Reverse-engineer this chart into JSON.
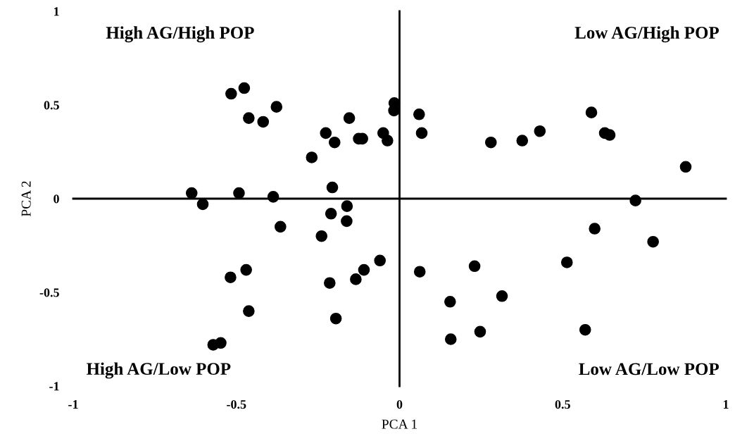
{
  "chart_data": {
    "type": "scatter",
    "xlabel": "PCA 1",
    "ylabel": "PCA 2",
    "xlim": [
      -1,
      1
    ],
    "ylim": [
      -1,
      1
    ],
    "xticks": [
      -1,
      -0.5,
      0,
      0.5,
      1
    ],
    "yticks": [
      -1,
      -0.5,
      0,
      0.5,
      1
    ],
    "marker": "circle",
    "annotations": [
      "High AG/High POP",
      "Low AG/High POP",
      "High AG/Low POP",
      "Low AG/Low POP"
    ],
    "series": [
      {
        "color": "#000000",
        "x": [
          -0.516,
          -0.476,
          -0.462,
          -0.418,
          -0.377,
          -0.269,
          -0.226,
          -0.199,
          -0.154,
          -0.125,
          -0.114,
          -0.05,
          -0.037,
          -0.016,
          -0.017,
          -0.637,
          -0.492,
          -0.387,
          -0.206,
          0.06,
          0.068,
          0.28,
          0.376,
          0.43,
          0.588,
          0.629,
          0.644,
          0.877,
          0.723,
          -0.603,
          -0.161,
          -0.21,
          -0.162,
          -0.365,
          -0.239,
          -0.06,
          -0.109,
          -0.134,
          -0.214,
          -0.47,
          -0.518,
          -0.462,
          -0.195,
          -0.571,
          -0.548,
          0.598,
          0.777,
          0.513,
          0.062,
          0.23,
          0.155,
          0.314,
          0.157,
          0.247,
          0.569
        ],
        "values": [
          0.56,
          0.59,
          0.43,
          0.41,
          0.49,
          0.22,
          0.35,
          0.3,
          0.43,
          0.32,
          0.32,
          0.35,
          0.31,
          0.51,
          0.47,
          0.03,
          0.03,
          0.01,
          0.06,
          0.45,
          0.35,
          0.3,
          0.31,
          0.36,
          0.46,
          0.35,
          0.34,
          0.17,
          -0.01,
          -0.03,
          -0.04,
          -0.08,
          -0.12,
          -0.15,
          -0.2,
          -0.33,
          -0.38,
          -0.43,
          -0.45,
          -0.38,
          -0.42,
          -0.6,
          -0.64,
          -0.78,
          -0.77,
          -0.16,
          -0.23,
          -0.34,
          -0.39,
          -0.36,
          -0.55,
          -0.52,
          -0.75,
          -0.71,
          -0.7
        ]
      }
    ]
  }
}
